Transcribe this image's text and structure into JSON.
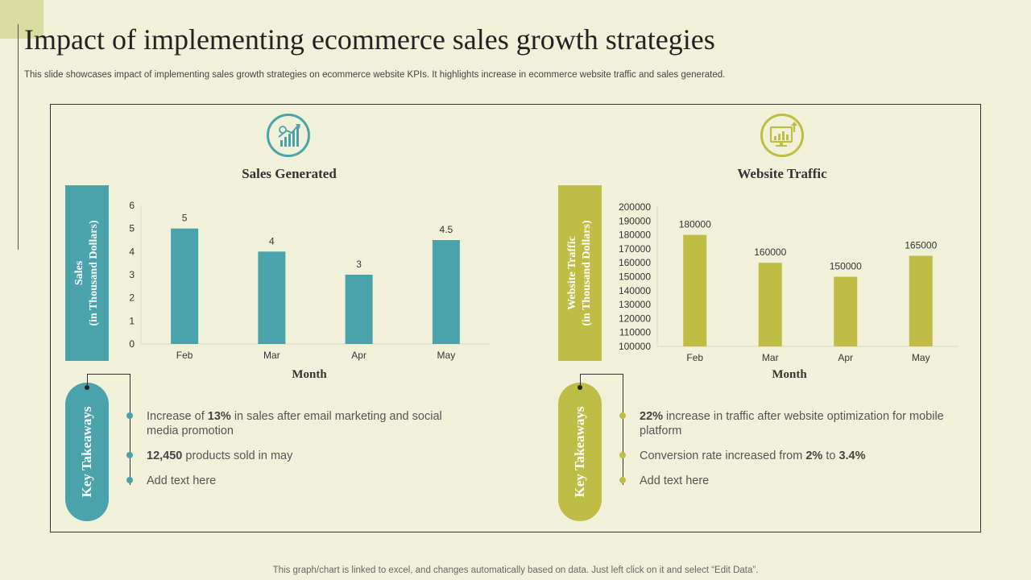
{
  "slide": {
    "title": "Impact of implementing ecommerce sales growth strategies",
    "subtitle": "This slide showcases impact of implementing sales growth strategies on ecommerce website KPIs. It highlights increase in ecommerce website traffic and sales generated.",
    "footer": "This graph/chart is linked to excel, and changes automatically based on data. Just left click on it and select “Edit Data”."
  },
  "colors": {
    "teal": "#4aa3aa",
    "olive": "#bfbd45",
    "background": "#f1f1da"
  },
  "left_panel": {
    "icon": "growth-chart-icon",
    "y_band_line1": "Sales",
    "y_band_line2": "(in Thousand  Dollars)",
    "takeaways_label": "Key Takeaways",
    "bullets": [
      {
        "pre": "Increase of ",
        "bold": "13%",
        "post": " in sales after email marketing and social media promotion"
      },
      {
        "pre": "",
        "bold": "12,450",
        "post": " products sold in may"
      },
      {
        "pre": "Add text here",
        "bold": "",
        "post": ""
      }
    ]
  },
  "right_panel": {
    "icon": "monitor-analytics-icon",
    "y_band_line1": "Website Traffic",
    "y_band_line2": "(in Thousand  Dollars)",
    "takeaways_label": "Key Takeaways",
    "bullets": [
      {
        "pre": "",
        "bold": "22%",
        "post": " increase in traffic after website optimization for mobile platform"
      },
      {
        "pre": "Conversion rate increased from ",
        "bold": "2%",
        "mid": " to ",
        "bold2": "3.4%",
        "post": ""
      },
      {
        "pre": "Add text here",
        "bold": "",
        "post": ""
      }
    ]
  },
  "chart_data": [
    {
      "type": "bar",
      "title": "Sales Generated",
      "xlabel": "Month",
      "ylabel": "Sales (in Thousand  Dollars)",
      "categories": [
        "Feb",
        "Mar",
        "Apr",
        "May"
      ],
      "values": [
        5,
        4,
        3,
        4.5
      ],
      "data_labels": [
        "5",
        "4",
        "3",
        "4.5"
      ],
      "ylim": [
        0,
        6
      ],
      "yticks": [
        0,
        1,
        2,
        3,
        4,
        5,
        6
      ],
      "grid": false,
      "color": "#4aa3aa"
    },
    {
      "type": "bar",
      "title": "Website Traffic",
      "xlabel": "Month",
      "ylabel": "Website Traffic (in Thousand  Dollars)",
      "categories": [
        "Feb",
        "Mar",
        "Apr",
        "May"
      ],
      "values": [
        180000,
        160000,
        150000,
        165000
      ],
      "data_labels": [
        "180000",
        "160000",
        "150000",
        "165000"
      ],
      "ylim": [
        100000,
        200000
      ],
      "yticks": [
        100000,
        110000,
        120000,
        130000,
        140000,
        150000,
        160000,
        170000,
        180000,
        190000,
        200000
      ],
      "grid": false,
      "color": "#bfbd45"
    }
  ]
}
